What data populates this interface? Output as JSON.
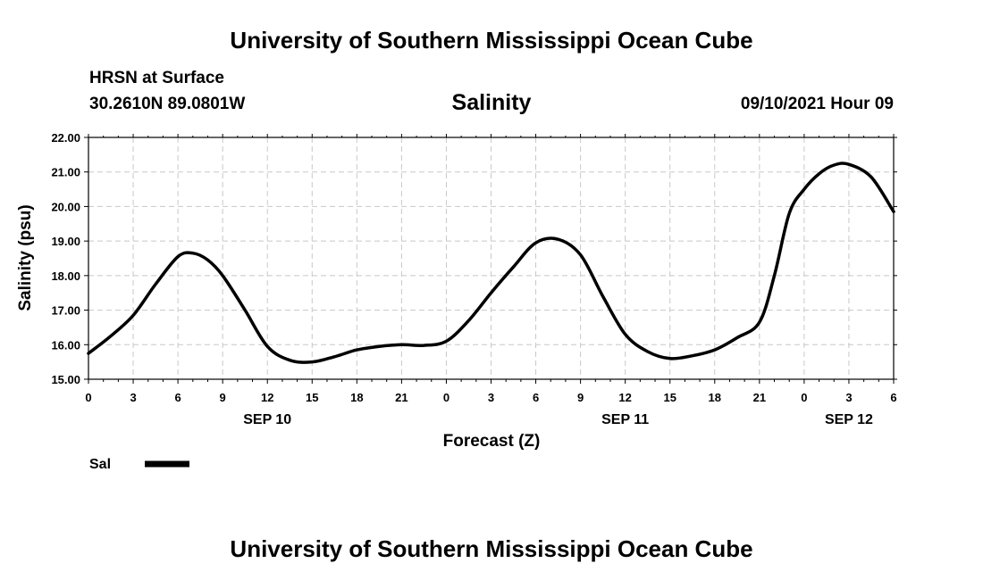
{
  "header": {
    "title_top": "University of Southern Mississippi Ocean Cube",
    "title_bottom": "University of Southern Mississippi Ocean Cube",
    "station": "HRSN at Surface",
    "coords": "30.2610N  89.0801W",
    "datetime": "09/10/2021 Hour 09"
  },
  "chart_data": {
    "type": "line",
    "title": "Salinity",
    "xlabel": "Forecast (Z)",
    "ylabel": "Salinity (psu)",
    "xlim": [
      0,
      54
    ],
    "ylim": [
      15,
      22
    ],
    "grid": true,
    "y_ticks": [
      "15.00",
      "16.00",
      "17.00",
      "18.00",
      "19.00",
      "20.00",
      "21.00",
      "22.00"
    ],
    "x_tick_labels": [
      "0",
      "3",
      "6",
      "9",
      "12",
      "15",
      "18",
      "21",
      "0",
      "3",
      "6",
      "9",
      "12",
      "15",
      "18",
      "21",
      "0",
      "3",
      "6"
    ],
    "day_labels": [
      {
        "label": "SEP 10",
        "x": 12
      },
      {
        "label": "SEP 11",
        "x": 36
      },
      {
        "label": "SEP 12",
        "x": 51
      }
    ],
    "legend": [
      {
        "name": "Sal",
        "color": "#000000"
      }
    ],
    "series": [
      {
        "name": "Sal",
        "x": [
          0,
          1.5,
          3,
          4.5,
          6,
          7,
          8,
          9,
          10.5,
          12,
          13.5,
          15,
          16.5,
          18,
          19.5,
          21,
          22.5,
          24,
          25.5,
          27,
          28.5,
          30,
          31.5,
          33,
          34.5,
          36,
          37.5,
          39,
          40.5,
          42,
          43.5,
          45,
          46,
          47,
          48,
          49,
          50,
          51,
          52.5,
          54
        ],
        "values": [
          15.75,
          16.25,
          16.85,
          17.75,
          18.55,
          18.65,
          18.45,
          18.0,
          17.0,
          15.95,
          15.55,
          15.5,
          15.65,
          15.85,
          15.95,
          16.0,
          15.98,
          16.1,
          16.7,
          17.5,
          18.25,
          18.95,
          19.05,
          18.6,
          17.4,
          16.3,
          15.8,
          15.6,
          15.68,
          15.85,
          16.2,
          16.65,
          18.0,
          19.8,
          20.5,
          20.95,
          21.2,
          21.22,
          20.85,
          19.85
        ]
      }
    ]
  }
}
